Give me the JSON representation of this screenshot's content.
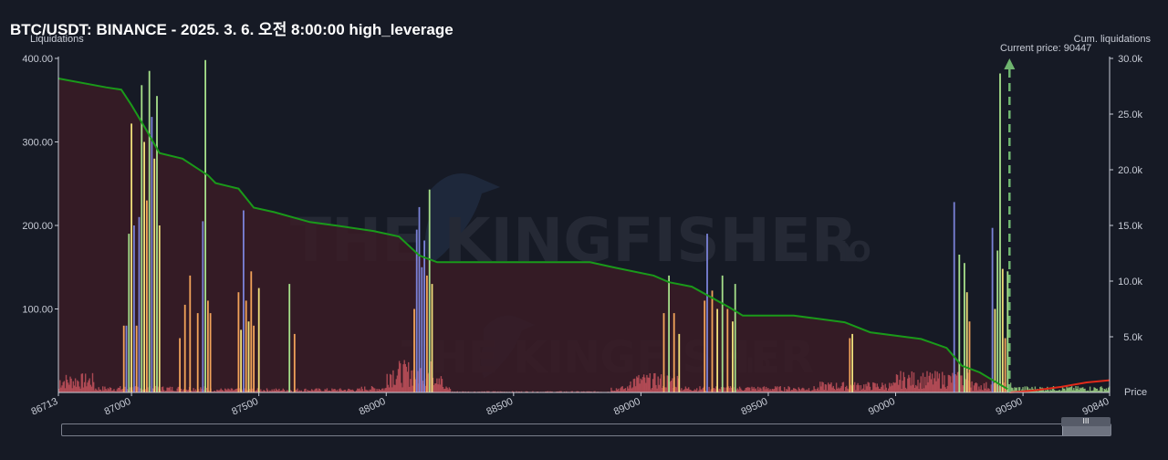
{
  "title": "BTC/USDT: BINANCE - 2025. 3. 6. 오전 8:00:00 high_leverage",
  "watermark": "THE KINGFISHER",
  "watermark_suffix": "IO",
  "scroll_grip_label": "III",
  "colors": {
    "background": "#161a25",
    "area_fill": "#3a1c26",
    "cum_line": "#1a9a1a",
    "short_cum_line": "#e02a1a",
    "price_marker": "#6fb56f",
    "bar_red": "#c0505a",
    "bar_orange": "#f2a35a",
    "bar_yellow": "#f0df7a",
    "bar_green": "#a6e08a",
    "bar_blue": "#7a82d8"
  },
  "chart_data": {
    "type": "bar",
    "title": "BTC/USDT: BINANCE - 2025. 3. 6. 오전 8:00:00 high_leverage",
    "xlabel": "Price",
    "ylabel": "Liquidations",
    "y2label": "Cum. liquidations",
    "xlim": [
      86713,
      90840
    ],
    "ylim": [
      0,
      400
    ],
    "y2lim": [
      0,
      30000
    ],
    "x_tick_labels": [
      "86713",
      "87000",
      "87500",
      "88000",
      "88500",
      "89000",
      "89500",
      "90000",
      "90500",
      "90840"
    ],
    "x_ticks": [
      86713,
      87000,
      87500,
      88000,
      88500,
      89000,
      89500,
      90000,
      90500,
      90840
    ],
    "y_tick_labels": [
      "100.00",
      "200.00",
      "300.00",
      "400.00"
    ],
    "y_ticks": [
      100,
      200,
      300,
      400
    ],
    "y2_tick_labels": [
      "5.0k",
      "10.0k",
      "15.0k",
      "20.0k",
      "25.0k",
      "30.0k"
    ],
    "y2_ticks": [
      5000,
      10000,
      15000,
      20000,
      25000,
      30000
    ],
    "current_price": 90447,
    "current_price_label": "Current price: 90447",
    "grid": false,
    "major_bars": [
      {
        "x": 86970,
        "v": 80,
        "c": "orange"
      },
      {
        "x": 86980,
        "v": 80,
        "c": "blue"
      },
      {
        "x": 86990,
        "v": 190,
        "c": "green"
      },
      {
        "x": 87000,
        "v": 322,
        "c": "yellow"
      },
      {
        "x": 87010,
        "v": 200,
        "c": "blue"
      },
      {
        "x": 87020,
        "v": 80,
        "c": "orange"
      },
      {
        "x": 87030,
        "v": 210,
        "c": "blue"
      },
      {
        "x": 87040,
        "v": 368,
        "c": "green"
      },
      {
        "x": 87050,
        "v": 300,
        "c": "yellow"
      },
      {
        "x": 87060,
        "v": 230,
        "c": "orange"
      },
      {
        "x": 87070,
        "v": 385,
        "c": "green"
      },
      {
        "x": 87080,
        "v": 330,
        "c": "blue"
      },
      {
        "x": 87090,
        "v": 280,
        "c": "yellow"
      },
      {
        "x": 87100,
        "v": 355,
        "c": "green"
      },
      {
        "x": 87110,
        "v": 200,
        "c": "yellow"
      },
      {
        "x": 87190,
        "v": 65,
        "c": "orange"
      },
      {
        "x": 87210,
        "v": 105,
        "c": "orange"
      },
      {
        "x": 87230,
        "v": 140,
        "c": "orange"
      },
      {
        "x": 87260,
        "v": 95,
        "c": "orange"
      },
      {
        "x": 87280,
        "v": 205,
        "c": "blue"
      },
      {
        "x": 87290,
        "v": 398,
        "c": "green"
      },
      {
        "x": 87300,
        "v": 110,
        "c": "orange"
      },
      {
        "x": 87310,
        "v": 95,
        "c": "orange"
      },
      {
        "x": 87420,
        "v": 120,
        "c": "orange"
      },
      {
        "x": 87430,
        "v": 75,
        "c": "yellow"
      },
      {
        "x": 87440,
        "v": 218,
        "c": "blue"
      },
      {
        "x": 87450,
        "v": 110,
        "c": "orange"
      },
      {
        "x": 87460,
        "v": 85,
        "c": "yellow"
      },
      {
        "x": 87470,
        "v": 145,
        "c": "orange"
      },
      {
        "x": 87480,
        "v": 80,
        "c": "orange"
      },
      {
        "x": 87500,
        "v": 125,
        "c": "yellow"
      },
      {
        "x": 87620,
        "v": 130,
        "c": "green"
      },
      {
        "x": 87640,
        "v": 70,
        "c": "orange"
      },
      {
        "x": 88110,
        "v": 100,
        "c": "orange"
      },
      {
        "x": 88120,
        "v": 195,
        "c": "blue"
      },
      {
        "x": 88130,
        "v": 222,
        "c": "blue"
      },
      {
        "x": 88140,
        "v": 150,
        "c": "blue"
      },
      {
        "x": 88150,
        "v": 182,
        "c": "blue"
      },
      {
        "x": 88160,
        "v": 140,
        "c": "orange"
      },
      {
        "x": 88170,
        "v": 243,
        "c": "green"
      },
      {
        "x": 88180,
        "v": 130,
        "c": "yellow"
      },
      {
        "x": 89090,
        "v": 95,
        "c": "orange"
      },
      {
        "x": 89110,
        "v": 140,
        "c": "green"
      },
      {
        "x": 89130,
        "v": 95,
        "c": "orange"
      },
      {
        "x": 89150,
        "v": 70,
        "c": "yellow"
      },
      {
        "x": 89250,
        "v": 110,
        "c": "orange"
      },
      {
        "x": 89260,
        "v": 190,
        "c": "blue"
      },
      {
        "x": 89280,
        "v": 122,
        "c": "orange"
      },
      {
        "x": 89300,
        "v": 100,
        "c": "yellow"
      },
      {
        "x": 89320,
        "v": 140,
        "c": "green"
      },
      {
        "x": 89340,
        "v": 100,
        "c": "orange"
      },
      {
        "x": 89360,
        "v": 85,
        "c": "yellow"
      },
      {
        "x": 89370,
        "v": 130,
        "c": "green"
      },
      {
        "x": 89820,
        "v": 65,
        "c": "orange"
      },
      {
        "x": 89830,
        "v": 70,
        "c": "yellow"
      },
      {
        "x": 90230,
        "v": 228,
        "c": "blue"
      },
      {
        "x": 90250,
        "v": 165,
        "c": "green"
      },
      {
        "x": 90270,
        "v": 155,
        "c": "green"
      },
      {
        "x": 90280,
        "v": 120,
        "c": "yellow"
      },
      {
        "x": 90290,
        "v": 85,
        "c": "orange"
      },
      {
        "x": 90380,
        "v": 197,
        "c": "blue"
      },
      {
        "x": 90390,
        "v": 100,
        "c": "yellow"
      },
      {
        "x": 90400,
        "v": 170,
        "c": "green"
      },
      {
        "x": 90410,
        "v": 382,
        "c": "green"
      },
      {
        "x": 90420,
        "v": 148,
        "c": "yellow"
      },
      {
        "x": 90430,
        "v": 65,
        "c": "orange"
      },
      {
        "x": 90440,
        "v": 145,
        "c": "green"
      }
    ],
    "cum_line": [
      [
        86713,
        28200
      ],
      [
        86900,
        27400
      ],
      [
        86960,
        27200
      ],
      [
        87000,
        25800
      ],
      [
        87060,
        23500
      ],
      [
        87110,
        21500
      ],
      [
        87200,
        21000
      ],
      [
        87300,
        19500
      ],
      [
        87330,
        18800
      ],
      [
        87420,
        18300
      ],
      [
        87480,
        16600
      ],
      [
        87560,
        16200
      ],
      [
        87700,
        15300
      ],
      [
        87800,
        15000
      ],
      [
        87950,
        14500
      ],
      [
        88050,
        14000
      ],
      [
        88130,
        12300
      ],
      [
        88200,
        11700
      ],
      [
        88300,
        11700
      ],
      [
        88500,
        11700
      ],
      [
        88800,
        11700
      ],
      [
        88900,
        11200
      ],
      [
        89050,
        10500
      ],
      [
        89110,
        9900
      ],
      [
        89200,
        9500
      ],
      [
        89350,
        7600
      ],
      [
        89400,
        6900
      ],
      [
        89600,
        6900
      ],
      [
        89800,
        6300
      ],
      [
        89900,
        5400
      ],
      [
        90100,
        4800
      ],
      [
        90200,
        4000
      ],
      [
        90260,
        2400
      ],
      [
        90330,
        1800
      ],
      [
        90440,
        300
      ]
    ],
    "short_cum_line": [
      [
        90447,
        0
      ],
      [
        90550,
        200
      ],
      [
        90650,
        500
      ],
      [
        90750,
        900
      ],
      [
        90840,
        1100
      ]
    ]
  }
}
